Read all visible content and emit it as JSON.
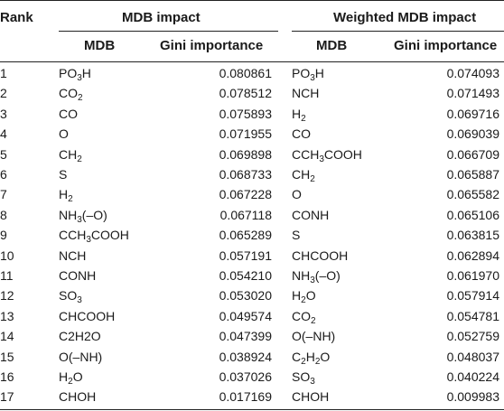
{
  "headers": {
    "rank": "Rank",
    "group1": "MDB impact",
    "group2": "Weighted MDB impact",
    "mdb": "MDB",
    "gini": "Gini importance"
  },
  "rows": [
    {
      "rank": "1",
      "mdb": "PO3H",
      "gini": "0.080861",
      "wmdb": "PO3H",
      "wgini": "0.074093"
    },
    {
      "rank": "2",
      "mdb": "CO2",
      "gini": "0.078512",
      "wmdb": "NCH",
      "wgini": "0.071493"
    },
    {
      "rank": "3",
      "mdb": "CO",
      "gini": "0.075893",
      "wmdb": "H2",
      "wgini": "0.069716"
    },
    {
      "rank": "4",
      "mdb": "O",
      "gini": "0.071955",
      "wmdb": "CO",
      "wgini": "0.069039"
    },
    {
      "rank": "5",
      "mdb": "CH2",
      "gini": "0.069898",
      "wmdb": "CCH3COOH",
      "wgini": "0.066709"
    },
    {
      "rank": "6",
      "mdb": "S",
      "gini": "0.068733",
      "wmdb": "CH2",
      "wgini": "0.065887"
    },
    {
      "rank": "7",
      "mdb": "H2",
      "gini": "0.067228",
      "wmdb": "O",
      "wgini": "0.065582"
    },
    {
      "rank": "8",
      "mdb": "NH3(–O)",
      "gini": "0.067118",
      "wmdb": "CONH",
      "wgini": "0.065106"
    },
    {
      "rank": "9",
      "mdb": "CCH3COOH",
      "gini": "0.065289",
      "wmdb": "S",
      "wgini": "0.063815"
    },
    {
      "rank": "10",
      "mdb": "NCH",
      "gini": "0.057191",
      "wmdb": "CHCOOH",
      "wgini": "0.062894"
    },
    {
      "rank": "11",
      "mdb": "CONH",
      "gini": "0.054210",
      "wmdb": "NH3(–O)",
      "wgini": "0.061970"
    },
    {
      "rank": "12",
      "mdb": "SO3",
      "gini": "0.053020",
      "wmdb": "H2O",
      "wgini": "0.057914"
    },
    {
      "rank": "13",
      "mdb": "CHCOOH",
      "gini": "0.049574",
      "wmdb": "CO2",
      "wgini": "0.054781"
    },
    {
      "rank": "14",
      "mdb": "C2H2O",
      "gini": "0.047399",
      "wmdb": "O(–NH)",
      "wgini": "0.052759"
    },
    {
      "rank": "15",
      "mdb": "O(–NH)",
      "gini": "0.038924",
      "wmdb": "C2H2O",
      "wgini": "0.048037"
    },
    {
      "rank": "16",
      "mdb": "H2O",
      "gini": "0.037026",
      "wmdb": "SO3",
      "wgini": "0.040224"
    },
    {
      "rank": "17",
      "mdb": "CHOH",
      "gini": "0.017169",
      "wmdb": "CHOH",
      "wgini": "0.009983"
    }
  ],
  "subscript_rows": {
    "mdb": [
      true,
      true,
      false,
      false,
      true,
      false,
      true,
      true,
      true,
      false,
      false,
      true,
      false,
      false,
      false,
      true,
      false
    ],
    "wmdb": [
      true,
      false,
      true,
      false,
      true,
      true,
      false,
      false,
      false,
      false,
      true,
      true,
      true,
      false,
      true,
      true,
      false
    ]
  }
}
